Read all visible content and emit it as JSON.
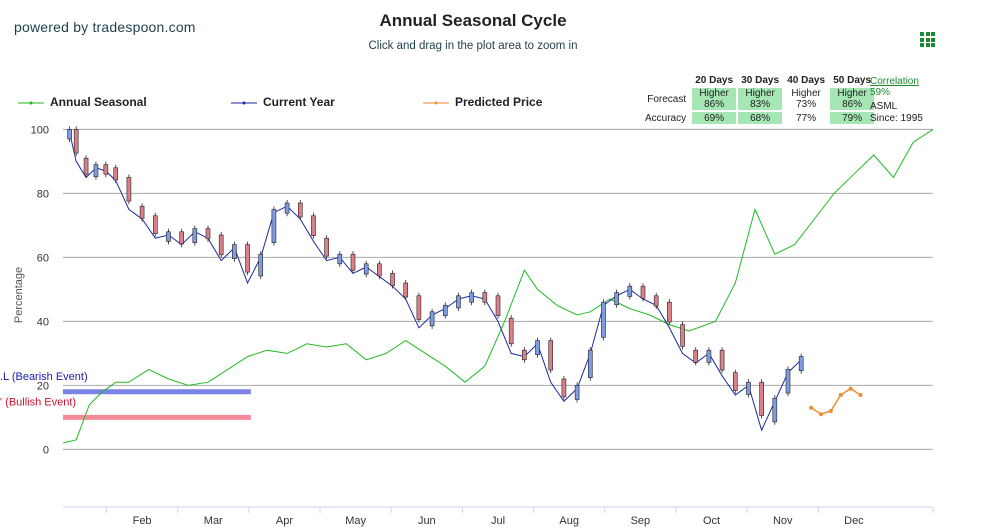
{
  "header": {
    "powered_by": "powered by tradespoon.com",
    "title": "Annual Seasonal Cycle",
    "subtitle": "Click and drag in the plot area to zoom in"
  },
  "legend": [
    {
      "name": "Annual Seasonal",
      "color": "#22bb22"
    },
    {
      "name": "Current Year",
      "color": "#1a2aa0"
    },
    {
      "name": "Predicted Price",
      "color": "#f08a30"
    }
  ],
  "forecast_table": {
    "columns": [
      "20 Days",
      "30 Days",
      "40 Days",
      "50 Days"
    ],
    "forecast_label": "Forecast",
    "accuracy_label": "Accuracy",
    "forecast": [
      {
        "dir": "Higher",
        "pct": "86%",
        "highlight": true
      },
      {
        "dir": "Higher",
        "pct": "83%",
        "highlight": true
      },
      {
        "dir": "Higher",
        "pct": "73%",
        "highlight": false
      },
      {
        "dir": "Higher",
        "pct": "86%",
        "highlight": true
      }
    ],
    "accuracy": [
      {
        "pct": "69%",
        "highlight": true
      },
      {
        "pct": "68%",
        "highlight": true
      },
      {
        "pct": "77%",
        "highlight": false
      },
      {
        "pct": "79%",
        "highlight": true
      }
    ]
  },
  "correlation": {
    "label": "Correlation",
    "value": "59%"
  },
  "ticker": {
    "symbol": "ASML",
    "since": "Since: 1995"
  },
  "chart_data": {
    "type": "line",
    "ylabel": "Percentage",
    "ylim": [
      -18,
      102
    ],
    "yticks": [
      0,
      20,
      40,
      60,
      80,
      100
    ],
    "grid": true,
    "months": [
      "Feb",
      "Mar",
      "Apr",
      "May",
      "Jun",
      "Jul",
      "Aug",
      "Sep",
      "Oct",
      "Nov",
      "Dec"
    ],
    "bands": [
      {
        "label": "SELL (Bearish Event)",
        "shown_label": ".L (Bearish Event)",
        "y": 18,
        "x_end": 2.85,
        "color": "#7b83e6",
        "label_color": "#1a1aaa"
      },
      {
        "label": "BUY (Bullish Event)",
        "shown_label": "' (Bullish Event)",
        "y": 10,
        "x_end": 2.85,
        "color": "#f28a99",
        "label_color": "#cc1133"
      }
    ],
    "series": [
      {
        "name": "Annual Seasonal",
        "color": "#22bb22",
        "points": [
          [
            0.0,
            2
          ],
          [
            0.2,
            3
          ],
          [
            0.4,
            14
          ],
          [
            0.6,
            18
          ],
          [
            0.8,
            21
          ],
          [
            1.0,
            21
          ],
          [
            1.3,
            25
          ],
          [
            1.6,
            22
          ],
          [
            1.9,
            20
          ],
          [
            2.2,
            21
          ],
          [
            2.5,
            25
          ],
          [
            2.8,
            29
          ],
          [
            3.1,
            31
          ],
          [
            3.4,
            30
          ],
          [
            3.7,
            33
          ],
          [
            4.0,
            32
          ],
          [
            4.3,
            33
          ],
          [
            4.6,
            28
          ],
          [
            4.9,
            30
          ],
          [
            5.2,
            34
          ],
          [
            5.5,
            30
          ],
          [
            5.8,
            26
          ],
          [
            6.1,
            21
          ],
          [
            6.4,
            26
          ],
          [
            6.7,
            40
          ],
          [
            7.0,
            56
          ],
          [
            7.2,
            50
          ],
          [
            7.5,
            45
          ],
          [
            7.8,
            42
          ],
          [
            8.0,
            43
          ],
          [
            8.3,
            47
          ],
          [
            8.6,
            44
          ],
          [
            8.9,
            42
          ],
          [
            9.2,
            39
          ],
          [
            9.5,
            37
          ],
          [
            9.9,
            40
          ],
          [
            10.2,
            52
          ],
          [
            10.5,
            75
          ],
          [
            10.8,
            61
          ],
          [
            11.1,
            64
          ],
          [
            11.4,
            72
          ],
          [
            11.7,
            80
          ],
          [
            12.0,
            86
          ],
          [
            12.3,
            92
          ],
          [
            12.6,
            85
          ],
          [
            12.9,
            96
          ],
          [
            13.2,
            100
          ]
        ]
      },
      {
        "name": "Current Year",
        "color": "#1a2aa0",
        "points": [
          [
            0.1,
            99
          ],
          [
            0.2,
            90
          ],
          [
            0.35,
            85
          ],
          [
            0.5,
            88
          ],
          [
            0.65,
            87
          ],
          [
            0.8,
            84
          ],
          [
            1.0,
            75
          ],
          [
            1.2,
            72
          ],
          [
            1.4,
            66
          ],
          [
            1.6,
            67
          ],
          [
            1.8,
            64
          ],
          [
            2.0,
            68
          ],
          [
            2.2,
            66
          ],
          [
            2.4,
            59
          ],
          [
            2.6,
            63
          ],
          [
            2.8,
            52
          ],
          [
            3.0,
            60
          ],
          [
            3.2,
            74
          ],
          [
            3.4,
            76
          ],
          [
            3.6,
            72
          ],
          [
            3.8,
            65
          ],
          [
            4.0,
            59
          ],
          [
            4.2,
            60
          ],
          [
            4.4,
            55
          ],
          [
            4.6,
            57
          ],
          [
            4.8,
            54
          ],
          [
            5.0,
            51
          ],
          [
            5.2,
            47
          ],
          [
            5.4,
            38
          ],
          [
            5.6,
            42
          ],
          [
            5.8,
            44
          ],
          [
            6.0,
            47
          ],
          [
            6.2,
            48
          ],
          [
            6.4,
            47
          ],
          [
            6.6,
            40
          ],
          [
            6.8,
            30
          ],
          [
            7.0,
            29
          ],
          [
            7.2,
            33
          ],
          [
            7.4,
            21
          ],
          [
            7.6,
            15
          ],
          [
            7.8,
            19
          ],
          [
            8.0,
            30
          ],
          [
            8.2,
            45
          ],
          [
            8.4,
            48
          ],
          [
            8.6,
            50
          ],
          [
            8.8,
            47
          ],
          [
            9.0,
            45
          ],
          [
            9.2,
            38
          ],
          [
            9.4,
            30
          ],
          [
            9.6,
            27
          ],
          [
            9.8,
            30
          ],
          [
            10.0,
            23
          ],
          [
            10.2,
            17
          ],
          [
            10.4,
            20
          ],
          [
            10.6,
            6
          ],
          [
            10.8,
            15
          ],
          [
            11.0,
            24
          ],
          [
            11.2,
            28
          ]
        ]
      },
      {
        "name": "Predicted Price",
        "color": "#f08a30",
        "points": [
          [
            11.35,
            13
          ],
          [
            11.5,
            11
          ],
          [
            11.65,
            12
          ],
          [
            11.8,
            17
          ],
          [
            11.95,
            19
          ],
          [
            12.1,
            17
          ]
        ]
      }
    ]
  }
}
